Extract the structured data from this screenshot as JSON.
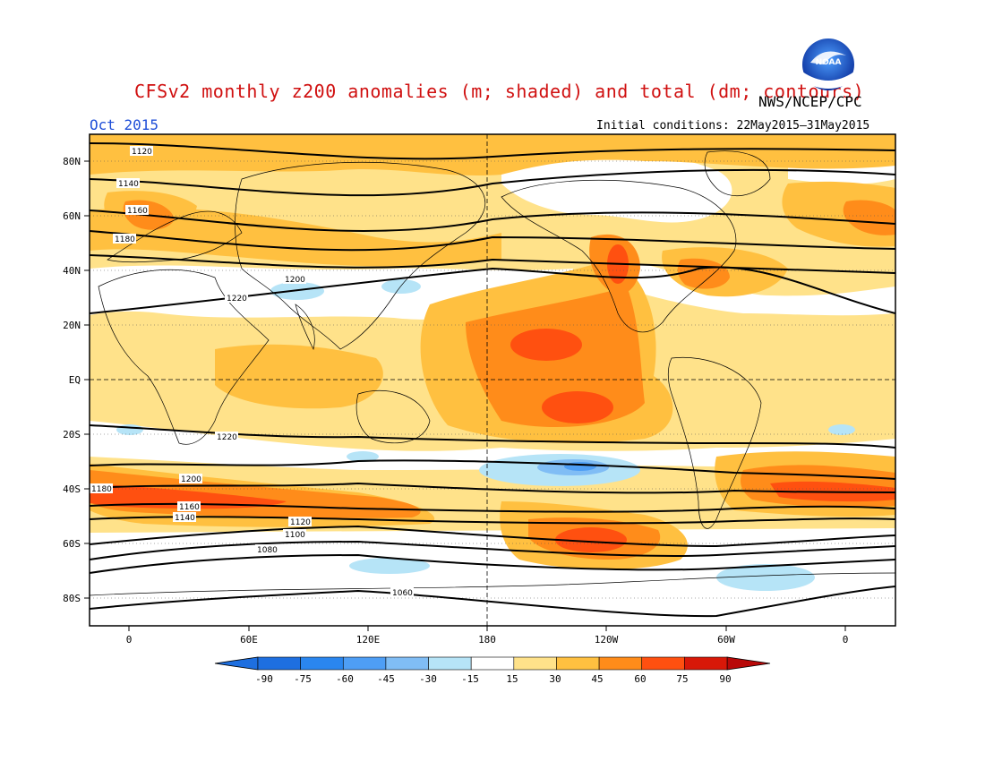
{
  "header": {
    "title": "CFSv2 monthly z200 anomalies (m; shaded) and total (dm; contours)",
    "agency": "NWS/NCEP/CPC",
    "month": "Oct 2015",
    "initial_conditions": "Initial conditions: 22May2015–31May2015"
  },
  "logo": {
    "text": "NOAA",
    "icon": "noaa-logo-icon"
  },
  "map": {
    "lat_labels": [
      "80N",
      "60N",
      "40N",
      "20N",
      "EQ",
      "20S",
      "40S",
      "60S",
      "80S"
    ],
    "lon_labels": [
      "0",
      "60E",
      "120E",
      "180",
      "120W",
      "60W",
      "0"
    ]
  },
  "colorbar": {
    "labels": [
      "-90",
      "-75",
      "-60",
      "-45",
      "-30",
      "-15",
      "15",
      "30",
      "45",
      "60",
      "75",
      "90"
    ],
    "colors": [
      "#1e6fe0",
      "#2a86ef",
      "#4e9ef5",
      "#80bdf5",
      "#b6e4f7",
      "#ffffff",
      "#ffe28a",
      "#ffc040",
      "#ff8c1a",
      "#ff5010",
      "#d81808"
    ]
  },
  "contours": [
    {
      "label": "1120"
    },
    {
      "label": "1140"
    },
    {
      "label": "1160"
    },
    {
      "label": "1180"
    },
    {
      "label": "1200"
    },
    {
      "label": "1220"
    },
    {
      "label": "1220"
    },
    {
      "label": "1200"
    },
    {
      "label": "1180"
    },
    {
      "label": "1160"
    },
    {
      "label": "1140"
    },
    {
      "label": "1120"
    },
    {
      "label": "1100"
    },
    {
      "label": "1080"
    },
    {
      "label": "1060"
    }
  ],
  "colors": {
    "title": "#d01010",
    "month": "#1f4fd8",
    "anomaly_pos": "#ffc040",
    "anomaly_neg": "#80bdf5"
  }
}
